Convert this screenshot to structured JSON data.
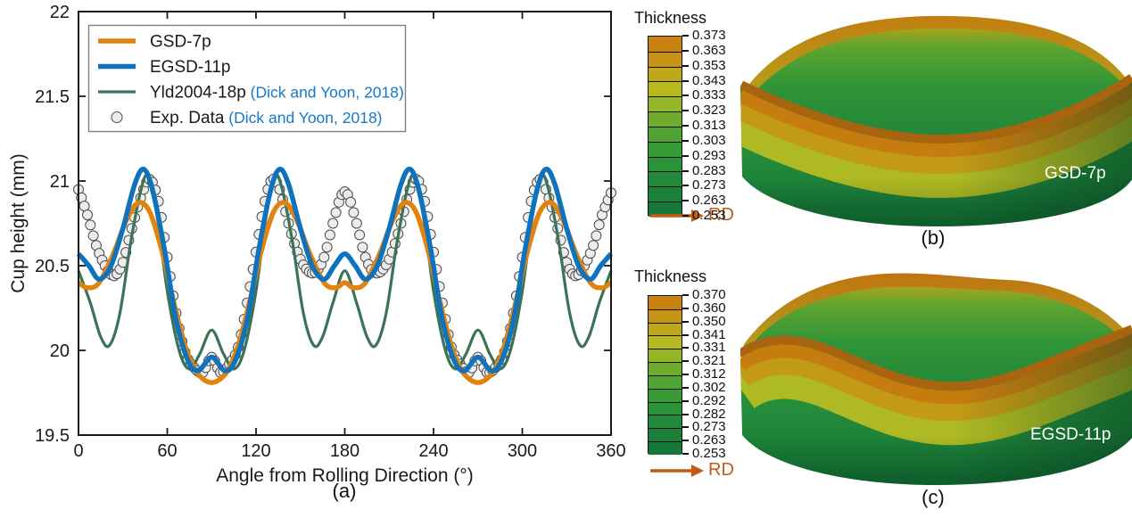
{
  "figure": {
    "caption_a": "(a)",
    "caption_b": "(b)",
    "caption_c": "(c)"
  },
  "colors": {
    "gsd7p_orange": "#E2820F",
    "egsd11p_blue": "#0E73BC",
    "yld2004_green": "#3C7355",
    "exp_marker_fill": "#ECECEC",
    "exp_marker_edge": "#4A4A4A",
    "citation_blue": "#1778C8",
    "axis_black": "#1A1A1A",
    "rd_orange": "#C55A14",
    "colorbar_cells_top_to_bottom": [
      "#C98212",
      "#C69317",
      "#BFA81B",
      "#B7BA1E",
      "#95B626",
      "#6FAC2D",
      "#4FA233",
      "#379A37",
      "#2A9339",
      "#22893A",
      "#1C803B",
      "#17783B"
    ]
  },
  "chart_data": {
    "type": "line",
    "title": "",
    "xlabel": "Angle from Rolling Direction (°)",
    "ylabel": "Cup height (mm)",
    "xlim": [
      0,
      360
    ],
    "ylim": [
      19.5,
      22
    ],
    "xticks": [
      "0",
      "60",
      "120",
      "180",
      "240",
      "300",
      "360"
    ],
    "yticks": [
      "19.5",
      "20",
      "20.5",
      "21",
      "21.5",
      "22"
    ],
    "grid": false,
    "legend_position": "top-left",
    "legend": [
      {
        "label": "GSD-7p",
        "citation": ""
      },
      {
        "label": "EGSD-11p",
        "citation": ""
      },
      {
        "label": "Yld2004-18p",
        "citation": " (Dick and Yoon, 2018)"
      },
      {
        "label": "Exp. Data",
        "citation": " (Dick and Yoon, 2018)"
      }
    ],
    "series": [
      {
        "name": "GSD-7p",
        "type": "line",
        "color": "#E2820F",
        "width": 5.5,
        "points": [
          [
            0,
            20.4
          ],
          [
            6,
            20.37
          ],
          [
            14,
            20.4
          ],
          [
            24,
            20.58
          ],
          [
            32,
            20.76
          ],
          [
            40,
            20.87
          ],
          [
            48,
            20.82
          ],
          [
            56,
            20.6
          ],
          [
            64,
            20.3
          ],
          [
            72,
            20.03
          ],
          [
            80,
            19.87
          ],
          [
            90,
            19.81
          ],
          [
            100,
            19.87
          ],
          [
            108,
            20.03
          ],
          [
            116,
            20.3
          ],
          [
            124,
            20.6
          ],
          [
            132,
            20.82
          ],
          [
            140,
            20.87
          ],
          [
            148,
            20.76
          ],
          [
            156,
            20.58
          ],
          [
            166,
            20.4
          ],
          [
            174,
            20.37
          ],
          [
            180,
            20.4
          ],
          [
            186,
            20.37
          ],
          [
            194,
            20.4
          ],
          [
            204,
            20.58
          ],
          [
            212,
            20.76
          ],
          [
            220,
            20.87
          ],
          [
            228,
            20.82
          ],
          [
            236,
            20.6
          ],
          [
            244,
            20.3
          ],
          [
            252,
            20.03
          ],
          [
            260,
            19.87
          ],
          [
            270,
            19.81
          ],
          [
            280,
            19.87
          ],
          [
            288,
            20.03
          ],
          [
            296,
            20.3
          ],
          [
            304,
            20.6
          ],
          [
            312,
            20.82
          ],
          [
            320,
            20.87
          ],
          [
            328,
            20.76
          ],
          [
            336,
            20.58
          ],
          [
            346,
            20.4
          ],
          [
            354,
            20.37
          ],
          [
            360,
            20.4
          ]
        ]
      },
      {
        "name": "EGSD-11p",
        "type": "line",
        "color": "#0E73BC",
        "width": 5.5,
        "points": [
          [
            0,
            20.57
          ],
          [
            7,
            20.5
          ],
          [
            14,
            20.42
          ],
          [
            22,
            20.5
          ],
          [
            30,
            20.72
          ],
          [
            38,
            20.98
          ],
          [
            44,
            21.07
          ],
          [
            50,
            20.95
          ],
          [
            58,
            20.6
          ],
          [
            66,
            20.18
          ],
          [
            74,
            19.94
          ],
          [
            81,
            19.88
          ],
          [
            90,
            19.96
          ],
          [
            99,
            19.88
          ],
          [
            106,
            19.94
          ],
          [
            114,
            20.18
          ],
          [
            122,
            20.6
          ],
          [
            130,
            20.95
          ],
          [
            136,
            21.07
          ],
          [
            142,
            20.98
          ],
          [
            150,
            20.72
          ],
          [
            158,
            20.5
          ],
          [
            166,
            20.42
          ],
          [
            173,
            20.5
          ],
          [
            180,
            20.57
          ],
          [
            187,
            20.5
          ],
          [
            194,
            20.42
          ],
          [
            202,
            20.5
          ],
          [
            210,
            20.72
          ],
          [
            218,
            20.98
          ],
          [
            224,
            21.07
          ],
          [
            230,
            20.95
          ],
          [
            238,
            20.6
          ],
          [
            246,
            20.18
          ],
          [
            254,
            19.94
          ],
          [
            261,
            19.88
          ],
          [
            270,
            19.96
          ],
          [
            279,
            19.88
          ],
          [
            286,
            19.94
          ],
          [
            294,
            20.18
          ],
          [
            302,
            20.6
          ],
          [
            310,
            20.95
          ],
          [
            316,
            21.07
          ],
          [
            322,
            20.98
          ],
          [
            330,
            20.72
          ],
          [
            338,
            20.5
          ],
          [
            346,
            20.42
          ],
          [
            353,
            20.5
          ],
          [
            360,
            20.57
          ]
        ]
      },
      {
        "name": "Yld2004-18p",
        "citation": "(Dick and Yoon, 2018)",
        "type": "line",
        "color": "#3C7355",
        "width": 3.2,
        "points": [
          [
            0,
            20.47
          ],
          [
            8,
            20.28
          ],
          [
            15,
            20.08
          ],
          [
            21,
            20.03
          ],
          [
            28,
            20.22
          ],
          [
            35,
            20.62
          ],
          [
            42,
            20.94
          ],
          [
            47,
            21.03
          ],
          [
            53,
            20.8
          ],
          [
            60,
            20.35
          ],
          [
            68,
            20.0
          ],
          [
            75,
            19.89
          ],
          [
            82,
            19.98
          ],
          [
            90,
            20.12
          ],
          [
            98,
            19.98
          ],
          [
            105,
            19.89
          ],
          [
            112,
            20.0
          ],
          [
            120,
            20.35
          ],
          [
            127,
            20.8
          ],
          [
            133,
            21.03
          ],
          [
            138,
            20.94
          ],
          [
            145,
            20.62
          ],
          [
            152,
            20.22
          ],
          [
            159,
            20.03
          ],
          [
            165,
            20.08
          ],
          [
            172,
            20.28
          ],
          [
            180,
            20.47
          ],
          [
            188,
            20.28
          ],
          [
            195,
            20.08
          ],
          [
            201,
            20.03
          ],
          [
            208,
            20.22
          ],
          [
            215,
            20.62
          ],
          [
            222,
            20.94
          ],
          [
            227,
            21.03
          ],
          [
            233,
            20.8
          ],
          [
            240,
            20.35
          ],
          [
            248,
            20.0
          ],
          [
            255,
            19.89
          ],
          [
            262,
            19.98
          ],
          [
            270,
            20.12
          ],
          [
            278,
            19.98
          ],
          [
            285,
            19.89
          ],
          [
            292,
            20.0
          ],
          [
            300,
            20.35
          ],
          [
            307,
            20.8
          ],
          [
            313,
            21.03
          ],
          [
            318,
            20.94
          ],
          [
            325,
            20.62
          ],
          [
            332,
            20.22
          ],
          [
            339,
            20.03
          ],
          [
            345,
            20.08
          ],
          [
            352,
            20.28
          ],
          [
            360,
            20.47
          ]
        ]
      },
      {
        "name": "Exp. Data",
        "citation": "(Dick and Yoon, 2018)",
        "type": "scatter",
        "color": "#ECECEC",
        "edge": "#4A4A4A",
        "marker_radius": 5.5,
        "marker_step_deg": 2,
        "points": [
          [
            0,
            20.95
          ],
          [
            6,
            20.8
          ],
          [
            12,
            20.62
          ],
          [
            18,
            20.5
          ],
          [
            24,
            20.44
          ],
          [
            30,
            20.52
          ],
          [
            36,
            20.72
          ],
          [
            42,
            20.9
          ],
          [
            48,
            21.01
          ],
          [
            54,
            20.88
          ],
          [
            60,
            20.55
          ],
          [
            66,
            20.22
          ],
          [
            72,
            19.99
          ],
          [
            78,
            19.9
          ],
          [
            84,
            19.87
          ],
          [
            90,
            19.96
          ],
          [
            96,
            19.87
          ],
          [
            102,
            19.92
          ],
          [
            108,
            20.02
          ],
          [
            114,
            20.28
          ],
          [
            120,
            20.58
          ],
          [
            126,
            20.88
          ],
          [
            131,
            21.01
          ],
          [
            136,
            20.95
          ],
          [
            142,
            20.75
          ],
          [
            148,
            20.58
          ],
          [
            154,
            20.48
          ],
          [
            160,
            20.46
          ],
          [
            166,
            20.55
          ],
          [
            172,
            20.75
          ],
          [
            178,
            20.92
          ],
          [
            182,
            20.92
          ],
          [
            188,
            20.75
          ],
          [
            194,
            20.55
          ],
          [
            200,
            20.46
          ],
          [
            206,
            20.48
          ],
          [
            212,
            20.58
          ],
          [
            218,
            20.75
          ],
          [
            224,
            20.95
          ],
          [
            229,
            21.01
          ],
          [
            234,
            20.88
          ],
          [
            240,
            20.58
          ],
          [
            246,
            20.28
          ],
          [
            252,
            20.02
          ],
          [
            258,
            19.92
          ],
          [
            264,
            19.87
          ],
          [
            270,
            19.96
          ],
          [
            276,
            19.87
          ],
          [
            282,
            19.9
          ],
          [
            288,
            19.99
          ],
          [
            294,
            20.22
          ],
          [
            300,
            20.55
          ],
          [
            306,
            20.88
          ],
          [
            312,
            21.01
          ],
          [
            318,
            20.9
          ],
          [
            324,
            20.72
          ],
          [
            330,
            20.52
          ],
          [
            336,
            20.44
          ],
          [
            342,
            20.5
          ],
          [
            348,
            20.62
          ],
          [
            354,
            20.8
          ],
          [
            360,
            20.93
          ]
        ]
      }
    ]
  },
  "panel_b": {
    "colorbar_title": "Thickness",
    "colorbar_ticks": [
      "0.373",
      "0.363",
      "0.353",
      "0.343",
      "0.333",
      "0.323",
      "0.313",
      "0.303",
      "0.293",
      "0.283",
      "0.273",
      "0.263",
      "0.253"
    ],
    "rd_label": "RD",
    "cup_label": "GSD-7p",
    "caption": "(b)"
  },
  "panel_c": {
    "colorbar_title": "Thickness",
    "colorbar_ticks": [
      "0.370",
      "0.360",
      "0.350",
      "0.341",
      "0.331",
      "0.321",
      "0.312",
      "0.302",
      "0.292",
      "0.282",
      "0.273",
      "0.263",
      "0.253"
    ],
    "rd_label": "RD",
    "cup_label": "EGSD-11p",
    "caption": "(c)"
  }
}
